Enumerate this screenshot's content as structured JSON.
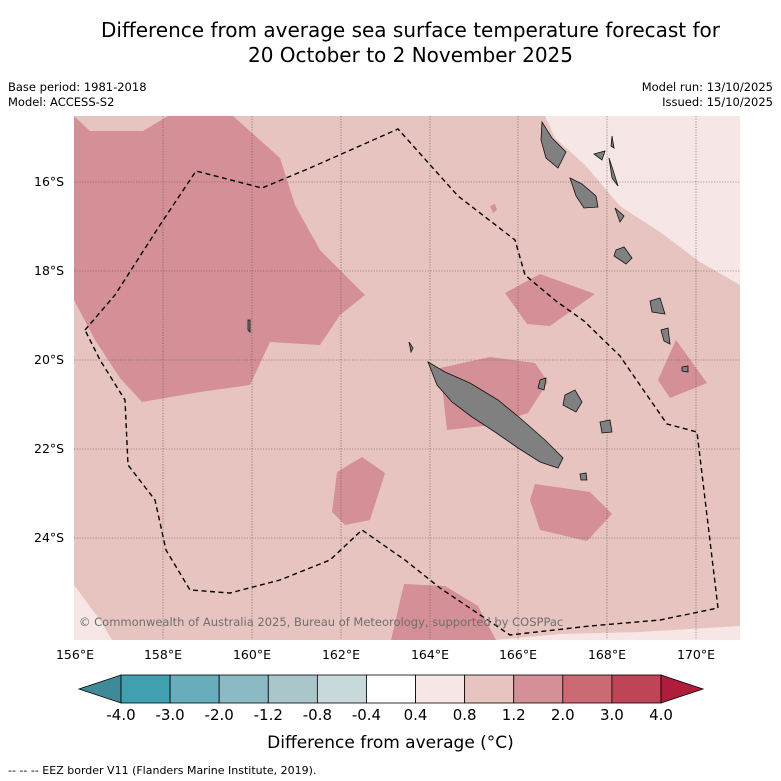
{
  "title_line1": "Difference from average sea surface temperature forecast for",
  "title_line2": "20 October to 2 November 2025",
  "base_period": "Base period: 1981-2018",
  "model": "Model: ACCESS-S2",
  "model_run": "Model run: 13/10/2025",
  "issued": "Issued: 15/10/2025",
  "lat_labels": [
    "16°S",
    "18°S",
    "20°S",
    "22°S",
    "24°S"
  ],
  "lon_labels": [
    "156°E",
    "158°E",
    "160°E",
    "162°E",
    "164°E",
    "166°E",
    "168°E",
    "170°E"
  ],
  "credit": "© Commonwealth of Australia 2025, Bureau of Meteorology, supported by COSPPac",
  "colorbar": {
    "tick_labels": [
      "-4.0",
      "-3.0",
      "-2.0",
      "-1.2",
      "-0.8",
      "-0.4",
      "0.4",
      "0.8",
      "1.2",
      "2.0",
      "3.0",
      "4.0"
    ],
    "colors": [
      "#40a0b0",
      "#68adbb",
      "#8cbac4",
      "#a9c7cb",
      "#c8d9dc",
      "#ffffff",
      "#f6e7e6",
      "#e8c4c0",
      "#d58f96",
      "#cc6a73",
      "#bf4455"
    ],
    "under_color": "#3f8a98",
    "over_color": "#b01c3c",
    "label": "Difference from average (°C)"
  },
  "footnote": "--  --  -- EEZ border V11 (Flanders Marine Institute, 2019).",
  "map_colors": {
    "band_0_4_0_8": "#f6e7e6",
    "band_0_8_1_2": "#e8c4c0",
    "band_1_2_2_0": "#d58f96",
    "land": "#808080"
  }
}
